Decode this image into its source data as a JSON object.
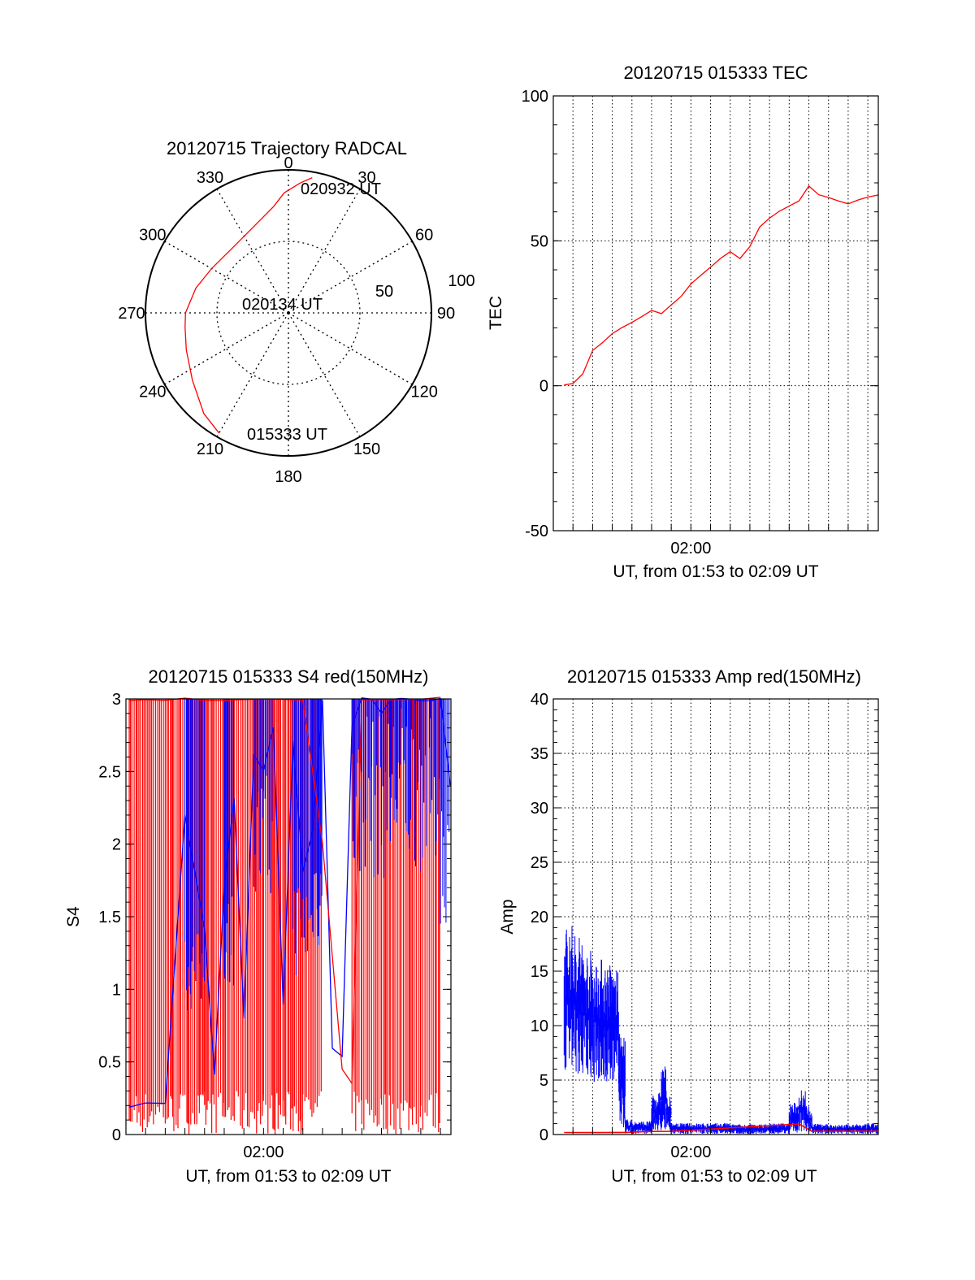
{
  "colors": {
    "red_channel": "#ff0000",
    "blue_channel": "#0000ff",
    "axes": "#000000",
    "grid": "#000000"
  },
  "chart_data": [
    {
      "type": "polar",
      "title": "20120715 Trajectory RADCAL",
      "angle_ticks": [
        "0",
        "30",
        "60",
        "90",
        "120",
        "150",
        "180",
        "210",
        "240",
        "270",
        "300",
        "330"
      ],
      "radial_ticks": [
        "50",
        "100"
      ],
      "rlim": [
        0,
        100
      ],
      "grid": true,
      "annotations": [
        "020932 UT",
        "020134 UT",
        "015333 UT"
      ],
      "series": [
        {
          "color": "red",
          "points_az_r": [
            [
              210,
              97
            ],
            [
              220,
              92
            ],
            [
              235,
              82
            ],
            [
              250,
              76
            ],
            [
              262,
              73
            ],
            [
              270,
              72
            ],
            [
              285,
              67
            ],
            [
              300,
              62
            ],
            [
              320,
              60
            ],
            [
              340,
              66
            ],
            [
              352,
              75
            ],
            [
              358,
              84
            ],
            [
              5,
              91
            ],
            [
              10,
              96
            ]
          ]
        }
      ]
    },
    {
      "type": "line",
      "title": "20120715 015333 TEC",
      "xlabel": "UT, from 01:53 to 02:09 UT",
      "ylabel": "TEC",
      "x_tick_labels": [
        "02:00"
      ],
      "xlim": [
        "01:53:00",
        "02:09:32"
      ],
      "ylim": [
        -50,
        100
      ],
      "y_ticks": [
        -50,
        0,
        50,
        100
      ],
      "grid": true,
      "series": [
        {
          "color": "red",
          "x": [
            "01:53:33",
            "01:54:00",
            "01:54:30",
            "01:55:00",
            "01:55:30",
            "01:56:00",
            "01:56:30",
            "01:57:00",
            "01:57:30",
            "01:58:00",
            "01:58:30",
            "01:59:00",
            "01:59:30",
            "02:00:00",
            "02:00:30",
            "02:01:00",
            "02:01:30",
            "02:02:00",
            "02:02:30",
            "02:03:00",
            "02:03:30",
            "02:04:00",
            "02:04:30",
            "02:05:00",
            "02:05:30",
            "02:06:00",
            "02:06:30",
            "02:07:00",
            "02:07:30",
            "02:08:00",
            "02:08:30",
            "02:09:00",
            "02:09:32"
          ],
          "values": [
            0,
            1,
            4,
            12,
            15,
            18,
            20,
            22,
            24,
            26,
            25,
            28,
            31,
            35,
            38,
            41,
            44,
            46,
            44,
            48,
            55,
            58,
            60,
            62,
            64,
            69,
            66,
            65,
            64,
            63,
            64,
            65,
            66
          ]
        }
      ]
    },
    {
      "type": "line",
      "title": "20120715 015333 S4 red(150MHz)",
      "xlabel": "UT, from 01:53 to 02:09 UT",
      "ylabel": "S4",
      "x_tick_labels": [
        "02:00"
      ],
      "xlim": [
        "01:53:00",
        "02:09:32"
      ],
      "ylim": [
        0,
        3
      ],
      "y_ticks": [
        "0",
        "0.5",
        "1",
        "1.5",
        "2",
        "2.5",
        "3"
      ],
      "grid": false,
      "series": [
        {
          "color": "blue",
          "x": [
            "01:53:10",
            "01:54:00",
            "01:55:00",
            "01:56:00",
            "01:57:00",
            "01:57:30",
            "01:58:00",
            "01:58:30",
            "01:59:00",
            "01:59:30",
            "02:00:00",
            "02:00:30",
            "02:01:00",
            "02:01:30",
            "02:02:00",
            "02:02:30",
            "02:03:00",
            "02:03:30",
            "02:04:00",
            "02:04:30",
            "02:05:00",
            "02:05:30",
            "02:06:00",
            "02:06:30",
            "02:07:00",
            "02:07:30",
            "02:08:00",
            "02:08:30",
            "02:09:00",
            "02:09:30"
          ],
          "values": [
            0.2,
            0.21,
            0.22,
            2.2,
            1.4,
            0.4,
            1.7,
            2.3,
            0.8,
            2.6,
            2.5,
            2.8,
            0.9,
            2.7,
            1.8,
            2.1,
            3.0,
            0.6,
            0.55,
            2.8,
            3.0,
            3.0,
            2.9,
            3.0,
            3.0,
            3.0,
            3.0,
            3.0,
            3.0,
            2.4
          ]
        },
        {
          "color": "red",
          "x": [
            "01:53:10",
            "01:54:00",
            "01:55:00",
            "01:56:00",
            "01:57:00",
            "01:58:00",
            "01:59:00",
            "02:00:00",
            "02:01:00",
            "02:02:00",
            "02:03:00",
            "02:04:00",
            "02:04:30",
            "02:05:00",
            "02:06:00",
            "02:07:00",
            "02:08:00",
            "02:09:00"
          ],
          "values": [
            3.0,
            3.0,
            3.0,
            3.0,
            3.0,
            3.0,
            3.0,
            3.0,
            3.0,
            3.0,
            2.0,
            0.45,
            0.35,
            3.0,
            3.0,
            3.0,
            3.0,
            3.0
          ]
        }
      ]
    },
    {
      "type": "line",
      "title": "20120715 015333 Amp red(150MHz)",
      "xlabel": "UT, from 01:53 to 02:09 UT",
      "ylabel": "Amp",
      "x_tick_labels": [
        "02:00"
      ],
      "xlim": [
        "01:53:00",
        "02:09:32"
      ],
      "ylim": [
        0,
        40
      ],
      "y_ticks": [
        0,
        5,
        10,
        15,
        20,
        25,
        30,
        35,
        40
      ],
      "grid": true,
      "series": [
        {
          "color": "blue",
          "x": [
            "01:53:33",
            "01:54:00",
            "01:54:30",
            "01:55:00",
            "01:55:30",
            "01:56:00",
            "01:56:20",
            "01:56:40",
            "01:57:00",
            "01:58:00",
            "01:58:30",
            "01:58:45",
            "01:59:00",
            "01:59:30",
            "02:00:00",
            "02:01:00",
            "02:02:00",
            "02:03:00",
            "02:04:00",
            "02:05:00",
            "02:05:30",
            "02:05:50",
            "02:06:10",
            "02:06:30",
            "02:07:00",
            "02:08:00",
            "02:09:00",
            "02:09:30"
          ],
          "values": [
            12,
            13,
            11,
            11,
            10,
            10.5,
            9,
            0.8,
            0.7,
            0.6,
            3.5,
            3.2,
            0.5,
            0.6,
            0.5,
            0.6,
            0.5,
            0.5,
            0.5,
            0.6,
            2.5,
            2.2,
            0.6,
            0.5,
            0.5,
            0.5,
            0.5,
            0.6
          ]
        },
        {
          "color": "red",
          "x": [
            "01:53:33",
            "01:55:00",
            "01:56:40",
            "01:58:00",
            "01:59:00",
            "02:05:30",
            "02:06:10",
            "02:06:30",
            "02:09:30"
          ],
          "values": [
            0.2,
            0.2,
            0.2,
            0.3,
            0.3,
            1.0,
            0.3,
            0.3,
            0.3
          ]
        }
      ]
    }
  ]
}
